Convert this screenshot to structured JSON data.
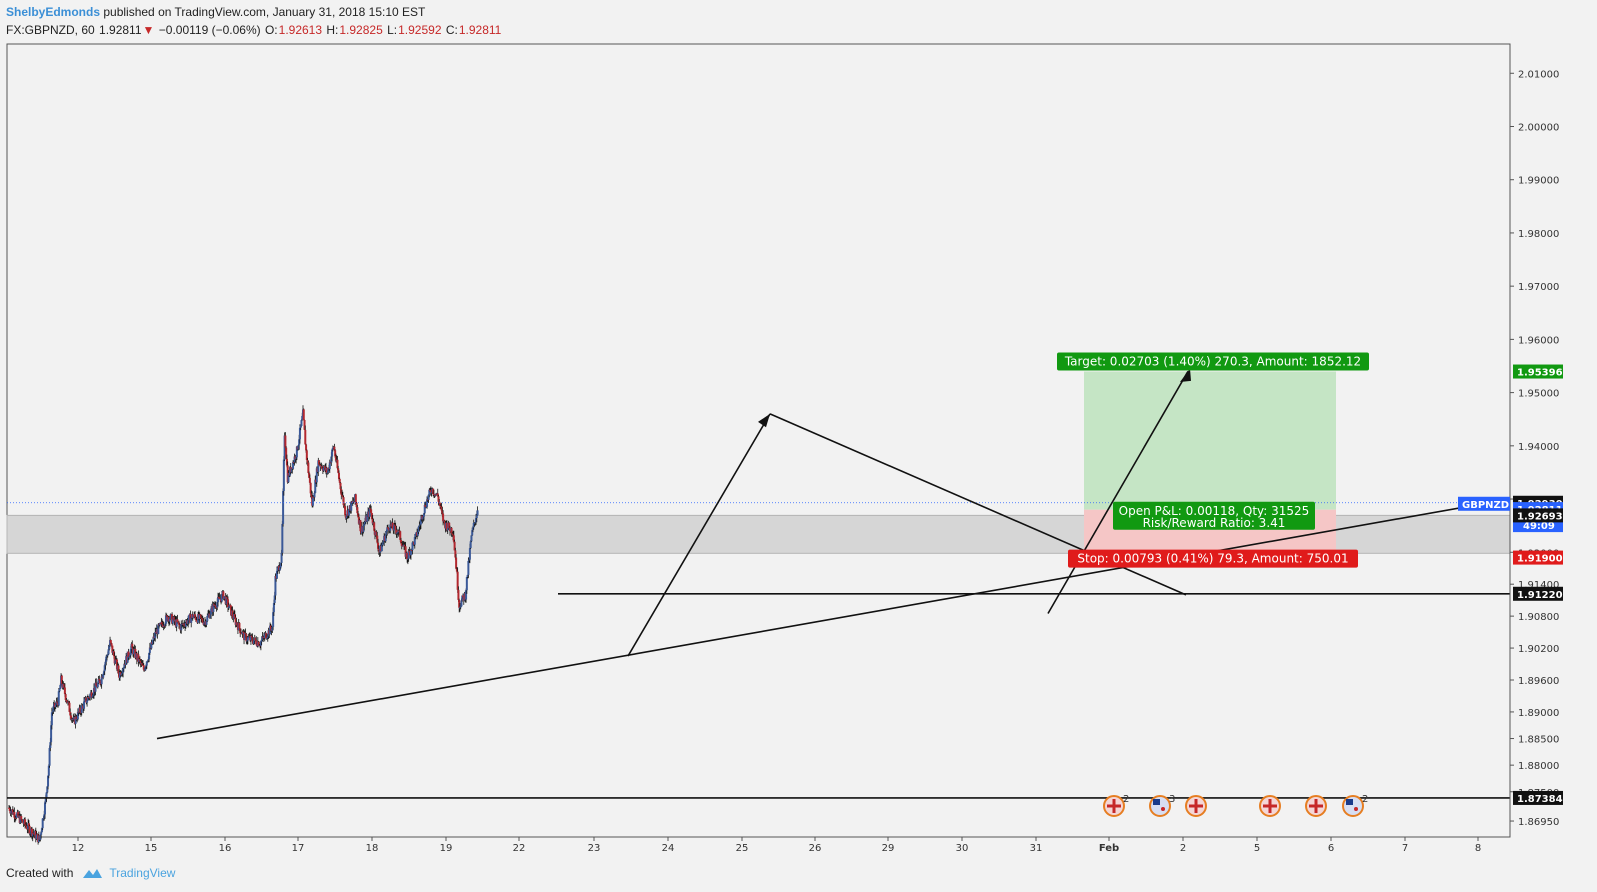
{
  "header": {
    "author": "ShelbyEdmonds",
    "published": "published on TradingView.com, January 31, 2018 15:10 EST",
    "symbol": "FX:GBPNZD, 60",
    "last": "1.92811",
    "change_arrow": "▼",
    "change": "−0.00119 (−0.06%)",
    "o_label": "O:",
    "o_value": "1.92613",
    "h_label": "H:",
    "h_value": "1.92825",
    "l_label": "L:",
    "l_value": "1.92592",
    "c_label": "C:",
    "c_value": "1.92811"
  },
  "footer": {
    "created_with": "Created with",
    "brand": "TradingView"
  },
  "colors": {
    "up": "#3b5998",
    "down": "#b2282f",
    "target_fill": "#c5e5c5",
    "stop_fill": "#f5c6c6",
    "target_tag": "#119911",
    "stop_tag": "#e01b1b",
    "symbol_tag": "#2962ff",
    "zone": "#d6d6d6"
  },
  "chart_data": {
    "type": "candlestick",
    "symbol": "GBPNZD",
    "interval": "60",
    "ylim": [
      1.8665,
      2.0155
    ],
    "y_ticks": [
      "2.01000",
      "2.00000",
      "1.99000",
      "1.98000",
      "1.97000",
      "1.96000",
      "1.95000",
      "1.94000",
      "1.93000",
      "1.92000",
      "1.91400",
      "1.90800",
      "1.90200",
      "1.89600",
      "1.89000",
      "1.88500",
      "1.88000",
      "1.87500",
      "1.86950"
    ],
    "x_ticks": [
      "12",
      "15",
      "16",
      "17",
      "18",
      "19",
      "22",
      "23",
      "24",
      "25",
      "26",
      "29",
      "30",
      "31",
      "Feb",
      "2",
      "5",
      "6",
      "7",
      "8"
    ],
    "price_path": [
      [
        0,
        1.872
      ],
      [
        5,
        1.869
      ],
      [
        10,
        1.866
      ],
      [
        12,
        1.8735
      ],
      [
        13,
        1.88
      ],
      [
        14,
        1.89
      ],
      [
        16,
        1.892
      ],
      [
        17,
        1.896
      ],
      [
        19,
        1.892
      ],
      [
        21,
        1.888
      ],
      [
        25,
        1.892
      ],
      [
        30,
        1.896
      ],
      [
        33,
        1.903
      ],
      [
        36,
        1.897
      ],
      [
        40,
        1.902
      ],
      [
        44,
        1.898
      ],
      [
        48,
        1.905
      ],
      [
        52,
        1.908
      ],
      [
        56,
        1.906
      ],
      [
        60,
        1.908
      ],
      [
        64,
        1.907
      ],
      [
        67,
        1.91
      ],
      [
        70,
        1.912
      ],
      [
        74,
        1.907
      ],
      [
        77,
        1.904
      ],
      [
        82,
        1.903
      ],
      [
        86,
        1.906
      ],
      [
        87,
        1.915
      ],
      [
        89,
        1.919
      ],
      [
        90,
        1.9425
      ],
      [
        91,
        1.934
      ],
      [
        94,
        1.939
      ],
      [
        96,
        1.946
      ],
      [
        97,
        1.939
      ],
      [
        99,
        1.929
      ],
      [
        101,
        1.937
      ],
      [
        104,
        1.935
      ],
      [
        106,
        1.94
      ],
      [
        108,
        1.933
      ],
      [
        110,
        1.927
      ],
      [
        113,
        1.93
      ],
      [
        115,
        1.924
      ],
      [
        118,
        1.928
      ],
      [
        121,
        1.92
      ],
      [
        124,
        1.925
      ],
      [
        127,
        1.924
      ],
      [
        130,
        1.919
      ],
      [
        133,
        1.923
      ],
      [
        136,
        1.929
      ],
      [
        138,
        1.932
      ],
      [
        140,
        1.9305
      ],
      [
        142,
        1.9255
      ],
      [
        145,
        1.924
      ],
      [
        146,
        1.9175
      ],
      [
        147,
        1.91
      ],
      [
        149,
        1.912
      ],
      [
        151,
        1.923
      ],
      [
        153,
        1.9281
      ]
    ],
    "levels": {
      "current": "1.92811",
      "countdown": "49:09",
      "target_price": "1.95396",
      "entry_line": "1.92930",
      "zone_top": "1.92693",
      "stop_price": "1.91900",
      "support": "1.91220",
      "bottom_support": "1.87384"
    },
    "position": {
      "target_label": "Target: 0.02703 (1.40%) 270.3, Amount: 1852.12",
      "pnl_label": "Open P&L: 0.00118, Qty: 31525",
      "rr_label": "Risk/Reward Ratio: 3.41",
      "stop_label": "Stop: 0.00793 (0.41%) 79.3, Amount: 750.01"
    },
    "symbol_tag": "GBPNZD",
    "events": [
      {
        "flag": "gb",
        "count": "2"
      },
      {
        "flag": "nz",
        "count": "3"
      },
      {
        "flag": "gb",
        "count": ""
      },
      {
        "flag": "gb",
        "count": ""
      },
      {
        "flag": "gb",
        "count": ""
      },
      {
        "flag": "nz",
        "count": "2"
      }
    ]
  }
}
